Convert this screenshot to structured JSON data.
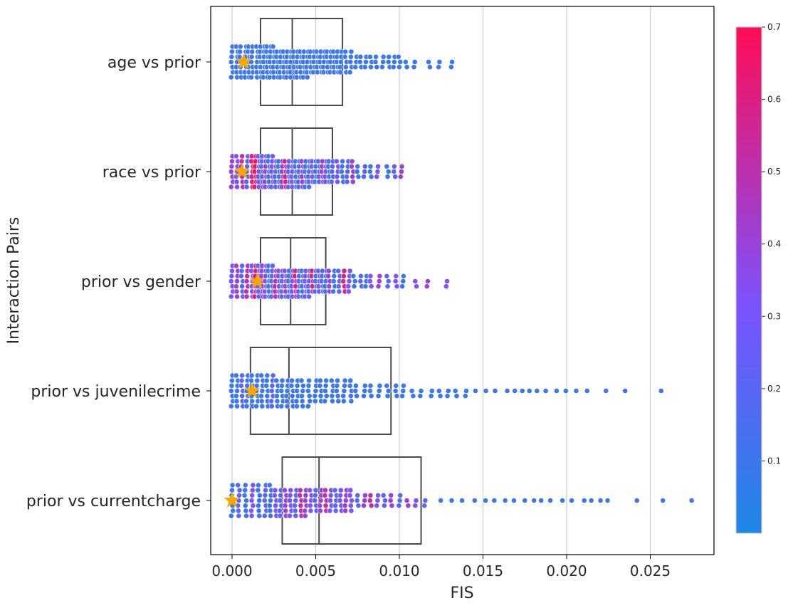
{
  "chart_data": {
    "type": "scatter",
    "subtype": "swarm-with-boxplot",
    "title": "",
    "xlabel": "FIS",
    "ylabel": "Interaction Pairs",
    "xlim": [
      -0.0013,
      0.0287
    ],
    "xticks": [
      0.0,
      0.005,
      0.01,
      0.015,
      0.02,
      0.025
    ],
    "xtick_labels": [
      "0.000",
      "0.005",
      "0.010",
      "0.015",
      "0.020",
      "0.025"
    ],
    "grid": "vertical",
    "categories": [
      "age vs prior",
      "race vs prior",
      "prior vs gender",
      "prior vs juvenilecrime",
      "prior vs currentcharge"
    ],
    "boxes": [
      {
        "name": "age vs prior",
        "q1": 0.0017,
        "median": 0.0036,
        "q3": 0.0066
      },
      {
        "name": "race vs prior",
        "q1": 0.0017,
        "median": 0.0036,
        "q3": 0.006
      },
      {
        "name": "prior vs gender",
        "q1": 0.0017,
        "median": 0.0035,
        "q3": 0.0056
      },
      {
        "name": "prior vs juvenilecrime",
        "q1": 0.0011,
        "median": 0.0034,
        "q3": 0.0095
      },
      {
        "name": "prior vs currentcharge",
        "q1": 0.003,
        "median": 0.0052,
        "q3": 0.0113
      }
    ],
    "highlight": [
      {
        "name": "age vs prior",
        "x": 0.0007
      },
      {
        "name": "race vs prior",
        "x": 0.0006
      },
      {
        "name": "prior vs gender",
        "x": 0.0015
      },
      {
        "name": "prior vs juvenilecrime",
        "x": 0.0012
      },
      {
        "name": "prior vs currentcharge",
        "x": 0.0
      }
    ],
    "series": [
      {
        "name": "age vs prior",
        "x": [
          0.0,
          0.0003,
          0.0005,
          0.0008,
          0.001,
          0.0012,
          0.0015,
          0.0017,
          0.0019,
          0.0021,
          0.0023,
          0.0025,
          0.0027,
          0.0029,
          0.0031,
          0.0033,
          0.0035,
          0.0037,
          0.0039,
          0.0041,
          0.0043,
          0.0045,
          0.0047,
          0.0049,
          0.0051,
          0.0053,
          0.0055,
          0.0057,
          0.0059,
          0.0061,
          0.0063,
          0.0065,
          0.0068,
          0.0071,
          0.0074,
          0.0077,
          0.008,
          0.0083,
          0.0086,
          0.009,
          0.0094,
          0.0097,
          0.01,
          0.0104,
          0.0109,
          0.0118,
          0.0124,
          0.0131
        ],
        "c": [
          0.1,
          0.1,
          0.1,
          0.1,
          0.1,
          0.1,
          0.1,
          0.1,
          0.1,
          0.1,
          0.1,
          0.1,
          0.1,
          0.1,
          0.1,
          0.1,
          0.1,
          0.1,
          0.1,
          0.1,
          0.1,
          0.1,
          0.1,
          0.1,
          0.1,
          0.1,
          0.1,
          0.1,
          0.1,
          0.1,
          0.1,
          0.1,
          0.1,
          0.1,
          0.1,
          0.1,
          0.1,
          0.1,
          0.1,
          0.1,
          0.1,
          0.1,
          0.1,
          0.1,
          0.1,
          0.1,
          0.1,
          0.1
        ]
      },
      {
        "name": "race vs prior",
        "x": [
          0.0,
          0.0003,
          0.0006,
          0.0009,
          0.0012,
          0.0014,
          0.0016,
          0.0018,
          0.002,
          0.0022,
          0.0024,
          0.0026,
          0.0028,
          0.003,
          0.0032,
          0.0034,
          0.0036,
          0.0038,
          0.004,
          0.0042,
          0.0044,
          0.0046,
          0.0048,
          0.005,
          0.0052,
          0.0054,
          0.0056,
          0.0058,
          0.006,
          0.0063,
          0.0066,
          0.0069,
          0.0072,
          0.0075,
          0.0079,
          0.0083,
          0.0087,
          0.0093,
          0.0097,
          0.0101
        ],
        "c": [
          0.4,
          0.3,
          0.5,
          0.2,
          0.6,
          0.7,
          0.3,
          0.2,
          0.4,
          0.1,
          0.3,
          0.2,
          0.1,
          0.4,
          0.6,
          0.2,
          0.3,
          0.1,
          0.2,
          0.4,
          0.1,
          0.2,
          0.3,
          0.1,
          0.2,
          0.4,
          0.3,
          0.1,
          0.2,
          0.3,
          0.1,
          0.2,
          0.4,
          0.1,
          0.2,
          0.1,
          0.3,
          0.1,
          0.2,
          0.4
        ]
      },
      {
        "name": "prior vs gender",
        "x": [
          0.0,
          0.0003,
          0.0006,
          0.0009,
          0.0012,
          0.0014,
          0.0016,
          0.0018,
          0.002,
          0.0022,
          0.0024,
          0.0026,
          0.0028,
          0.003,
          0.0032,
          0.0034,
          0.0036,
          0.0038,
          0.004,
          0.0042,
          0.0044,
          0.0046,
          0.0048,
          0.005,
          0.0052,
          0.0054,
          0.0056,
          0.0058,
          0.0061,
          0.0064,
          0.0067,
          0.007,
          0.0073,
          0.0077,
          0.008,
          0.0083,
          0.0088,
          0.0093,
          0.0098,
          0.0102,
          0.011,
          0.0117,
          0.0128
        ],
        "c": [
          0.3,
          0.4,
          0.2,
          0.5,
          0.3,
          0.6,
          0.2,
          0.4,
          0.3,
          0.1,
          0.2,
          0.5,
          0.3,
          0.2,
          0.4,
          0.1,
          0.3,
          0.6,
          0.2,
          0.1,
          0.3,
          0.2,
          0.6,
          0.1,
          0.3,
          0.2,
          0.1,
          0.4,
          0.1,
          0.2,
          0.6,
          0.3,
          0.1,
          0.2,
          0.1,
          0.3,
          0.4,
          0.2,
          0.3,
          0.1,
          0.3,
          0.4,
          0.3
        ]
      },
      {
        "name": "prior vs juvenilecrime",
        "x": [
          0.0,
          0.0003,
          0.0006,
          0.0009,
          0.0012,
          0.0015,
          0.0018,
          0.0021,
          0.0024,
          0.0027,
          0.003,
          0.0033,
          0.0036,
          0.0039,
          0.0042,
          0.0046,
          0.005,
          0.0053,
          0.0056,
          0.006,
          0.0063,
          0.0067,
          0.0071,
          0.0074,
          0.0079,
          0.0083,
          0.0088,
          0.0093,
          0.0098,
          0.0102,
          0.0108,
          0.0113,
          0.0119,
          0.0124,
          0.0129,
          0.0134,
          0.014,
          0.0145,
          0.0152,
          0.0157,
          0.0165,
          0.0169,
          0.0173,
          0.0178,
          0.0182,
          0.0188,
          0.0194,
          0.0199,
          0.0206,
          0.0212,
          0.0224,
          0.0235,
          0.0256
        ],
        "c": [
          0.1,
          0.1,
          0.2,
          0.1,
          0.1,
          0.1,
          0.1,
          0.1,
          0.2,
          0.1,
          0.1,
          0.1,
          0.1,
          0.1,
          0.1,
          0.1,
          0.1,
          0.1,
          0.1,
          0.1,
          0.1,
          0.1,
          0.1,
          0.1,
          0.1,
          0.1,
          0.1,
          0.1,
          0.1,
          0.1,
          0.1,
          0.1,
          0.1,
          0.1,
          0.1,
          0.1,
          0.1,
          0.1,
          0.1,
          0.1,
          0.1,
          0.1,
          0.1,
          0.1,
          0.1,
          0.1,
          0.1,
          0.1,
          0.1,
          0.1,
          0.1,
          0.1,
          0.1
        ]
      },
      {
        "name": "prior vs currentcharge",
        "x": [
          0.0,
          0.0004,
          0.0008,
          0.0012,
          0.0016,
          0.002,
          0.0023,
          0.0026,
          0.0029,
          0.0032,
          0.0035,
          0.0038,
          0.0041,
          0.0044,
          0.0047,
          0.005,
          0.0053,
          0.0056,
          0.0059,
          0.0062,
          0.0065,
          0.0068,
          0.0071,
          0.0075,
          0.0079,
          0.0083,
          0.0087,
          0.0091,
          0.0095,
          0.01,
          0.0105,
          0.011,
          0.0115,
          0.0125,
          0.0131,
          0.0138,
          0.0145,
          0.0151,
          0.0157,
          0.0163,
          0.0169,
          0.0175,
          0.018,
          0.0185,
          0.019,
          0.0198,
          0.0203,
          0.021,
          0.0215,
          0.022,
          0.0225,
          0.0242,
          0.0257,
          0.0275
        ],
        "c": [
          0.1,
          0.2,
          0.1,
          0.3,
          0.1,
          0.2,
          0.1,
          0.3,
          0.2,
          0.4,
          0.3,
          0.2,
          0.5,
          0.4,
          0.3,
          0.2,
          0.4,
          0.5,
          0.3,
          0.2,
          0.3,
          0.4,
          0.3,
          0.2,
          0.4,
          0.5,
          0.3,
          0.2,
          0.4,
          0.2,
          0.4,
          0.3,
          0.2,
          0.1,
          0.1,
          0.1,
          0.1,
          0.1,
          0.1,
          0.1,
          0.1,
          0.1,
          0.1,
          0.1,
          0.1,
          0.1,
          0.1,
          0.1,
          0.1,
          0.1,
          0.1,
          0.1,
          0.1,
          0.1
        ]
      }
    ],
    "colorbar": {
      "vmin": 0.0,
      "vmax": 0.7,
      "ticks": [
        0.1,
        0.2,
        0.3,
        0.4,
        0.5,
        0.6,
        0.7
      ],
      "tick_labels": [
        "0.1",
        "0.2",
        "0.3",
        "0.4",
        "0.5",
        "0.6",
        "0.7"
      ],
      "color_low": "#1e88e5",
      "color_mid": "#7c52ff",
      "color_high": "#ff0d57"
    },
    "colors": {
      "box": "#4a4a4a",
      "star": "#ffa500",
      "grid": "#cccccc",
      "axes": "#000000"
    }
  }
}
